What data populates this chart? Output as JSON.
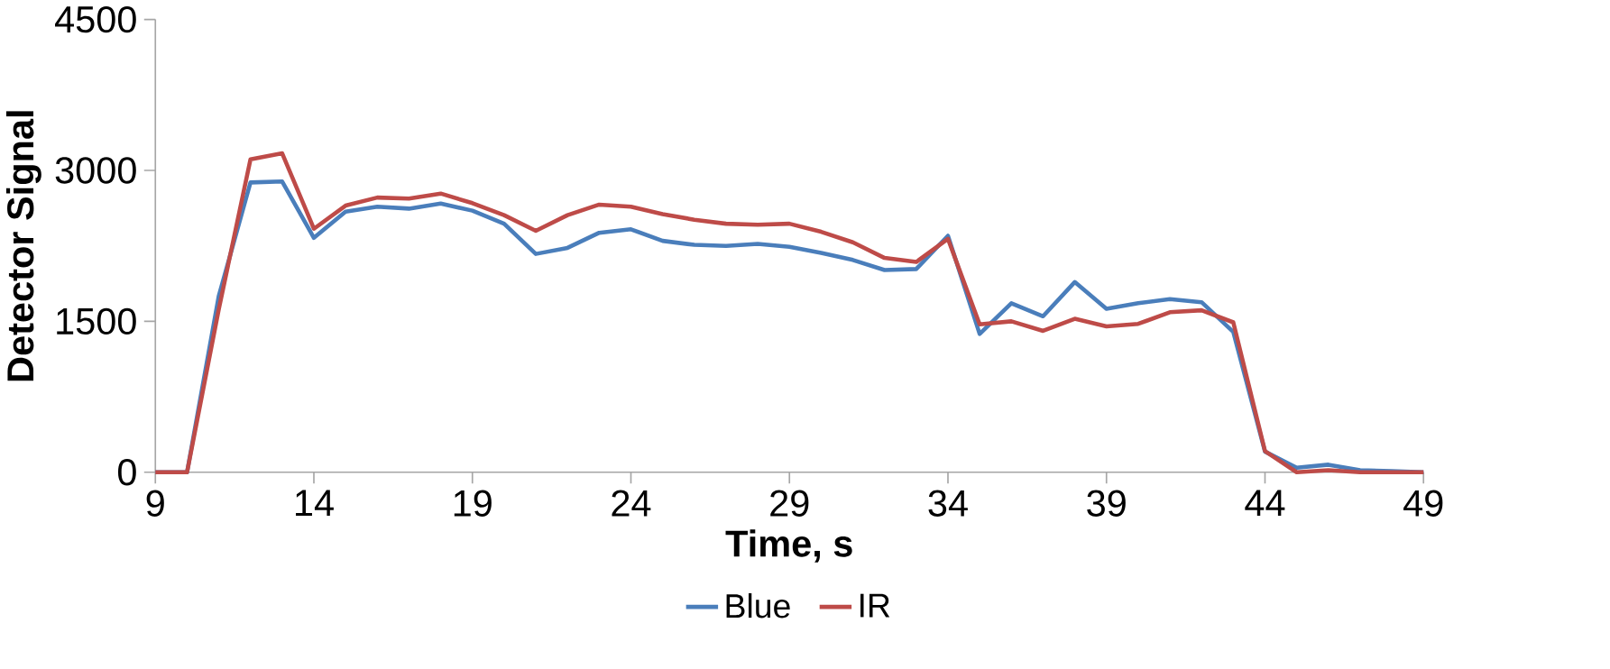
{
  "chart_data": {
    "type": "line",
    "xlabel": "Time, s",
    "ylabel": "Detector Signal",
    "x": [
      9,
      10,
      11,
      12,
      13,
      14,
      15,
      16,
      17,
      18,
      19,
      20,
      21,
      22,
      23,
      24,
      25,
      26,
      27,
      28,
      29,
      30,
      31,
      32,
      33,
      34,
      35,
      36,
      37,
      38,
      39,
      40,
      41,
      42,
      43,
      44,
      45,
      46,
      47,
      48,
      49
    ],
    "series": [
      {
        "name": "Blue",
        "color": "#4a7ebb",
        "values": [
          0,
          0,
          1750,
          2880,
          2890,
          2330,
          2590,
          2640,
          2620,
          2670,
          2600,
          2470,
          2170,
          2230,
          2380,
          2415,
          2300,
          2260,
          2250,
          2270,
          2240,
          2180,
          2110,
          2010,
          2020,
          2350,
          1375,
          1680,
          1550,
          1890,
          1625,
          1680,
          1720,
          1690,
          1395,
          205,
          45,
          75,
          20,
          10,
          0
        ]
      },
      {
        "name": "IR",
        "color": "#be4b48",
        "values": [
          0,
          0,
          1620,
          3110,
          3170,
          2420,
          2650,
          2730,
          2720,
          2770,
          2675,
          2555,
          2400,
          2555,
          2660,
          2640,
          2565,
          2510,
          2470,
          2460,
          2470,
          2390,
          2285,
          2130,
          2090,
          2320,
          1470,
          1500,
          1405,
          1525,
          1450,
          1475,
          1590,
          1610,
          1490,
          210,
          0,
          20,
          0,
          0,
          0
        ]
      }
    ],
    "xlim": [
      9,
      49
    ],
    "xticks": [
      9,
      14,
      19,
      24,
      29,
      34,
      39,
      44,
      49
    ],
    "ylim": [
      0,
      4500
    ],
    "yticks": [
      0,
      1500,
      3000,
      4500
    ],
    "grid": false,
    "legend": "bottom",
    "marker": "none",
    "line_style": "solid"
  }
}
